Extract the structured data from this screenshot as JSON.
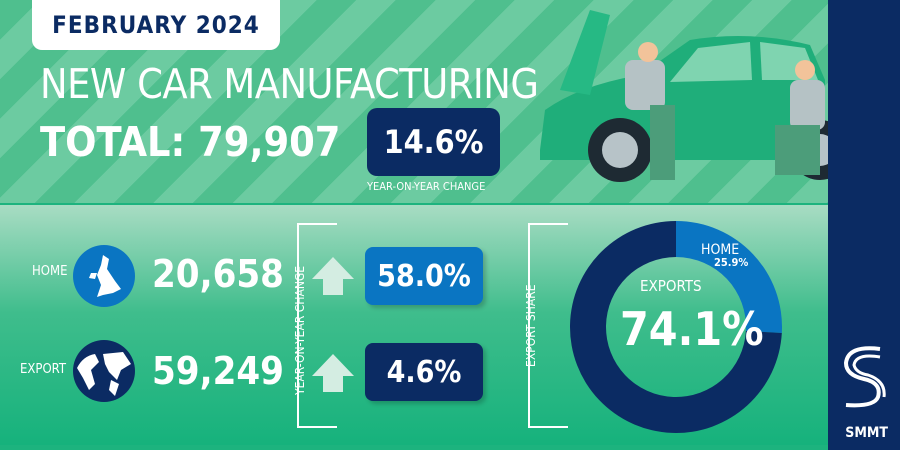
{
  "header": {
    "month": "FEBRUARY 2024",
    "title": "NEW CAR MANUFACTURING",
    "total": "TOTAL: 79,907",
    "yoy_change": "14.6%",
    "yoy_caption": "YEAR-ON-YEAR CHANGE"
  },
  "breakdown": {
    "yoy_label": "YEAR-ON-YEAR CHANGE",
    "home": {
      "label": "HOME",
      "value": "20,658",
      "change": "58.0%",
      "direction": "up",
      "icon": "uk-map-icon"
    },
    "export": {
      "label": "EXPORT",
      "value": "59,249",
      "change": "4.6%",
      "direction": "up",
      "icon": "world-globe-icon"
    }
  },
  "export_share": {
    "label": "EXPORT SHARE",
    "center_label": "EXPORTS",
    "center_value": "74.1%",
    "home_label": "HOME",
    "home_value": "25.9%"
  },
  "brand": {
    "name": "SMMT"
  },
  "colors": {
    "navy": "#0b2b63",
    "blue": "#0a75c2",
    "green": "#1db37e"
  },
  "chart_data": {
    "type": "pie",
    "donut": true,
    "categories": [
      "HOME",
      "EXPORTS"
    ],
    "values": [
      25.9,
      74.1
    ],
    "colors": [
      "#0a75c2",
      "#0b2b63"
    ]
  }
}
